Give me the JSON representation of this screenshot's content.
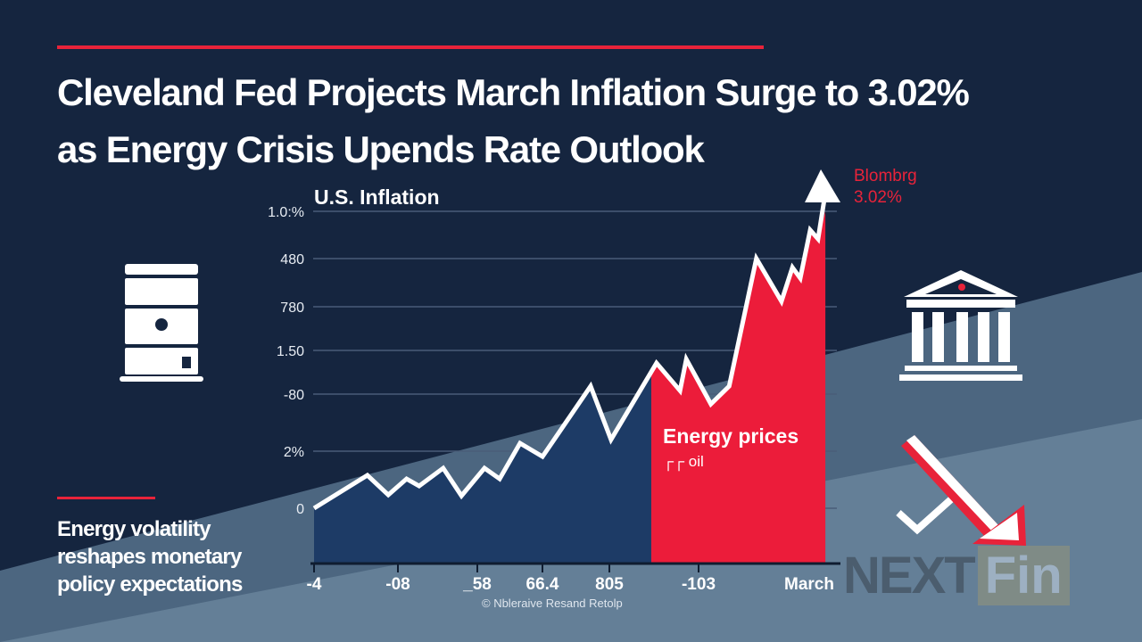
{
  "headline": {
    "line1": "Cleveland Fed Projects March Inflation Surge to 3.02%",
    "line2": "as Energy Crisis Upends Rate Outlook"
  },
  "side_caption": [
    "Energy volatility",
    "reshapes monetary",
    "policy expectations"
  ],
  "callout": {
    "source": "Blombrg",
    "value": "3.02%"
  },
  "source_note": "© Nbleraive Resand Retolp",
  "logo": {
    "part1": "NEXT",
    "part2": "Fin"
  },
  "icons": [
    "oil-barrel-icon",
    "bank-building-icon",
    "down-arrow-icon",
    "checkmark-icon",
    "up-arrow-icon"
  ],
  "colors": {
    "background": "#15253f",
    "accent": "#e8233a",
    "area_blue": "#1d3b66",
    "area_red": "#ec1c3a"
  },
  "chart_data": {
    "type": "area",
    "title": "U.S. Inflation",
    "y_tick_labels": [
      "1.0:%",
      "480",
      "780",
      "1.50",
      "-80",
      "2%",
      "0"
    ],
    "x_tick_labels": [
      "-4",
      "-08",
      "_58",
      "66.4",
      "805",
      "-103",
      "March"
    ],
    "grid": true,
    "annotation": {
      "label": "Energy prices",
      "sublabel": "┌┌ oil"
    },
    "highlight_from_x": 64.5,
    "series": [
      {
        "x": [
          0,
          10.2,
          14.2,
          17.7,
          20.1,
          24.7,
          28.2,
          32.6,
          35.5,
          39.4,
          43.7,
          52.9,
          56.8,
          65.5,
          70.0,
          71.2,
          75.9,
          79.4,
          84.6,
          89.4,
          91.5,
          93.0,
          94.9,
          96.4,
          98.3
        ],
        "y": [
          0,
          11.1,
          4.5,
          9.9,
          7.5,
          13.5,
          4.2,
          13.5,
          9.9,
          21.9,
          17.4,
          41.1,
          23.1,
          48.9,
          39.6,
          50.2,
          35.1,
          41.1,
          84.1,
          69.7,
          81.1,
          77.5,
          93.7,
          90.7,
          112.6
        ]
      }
    ]
  }
}
